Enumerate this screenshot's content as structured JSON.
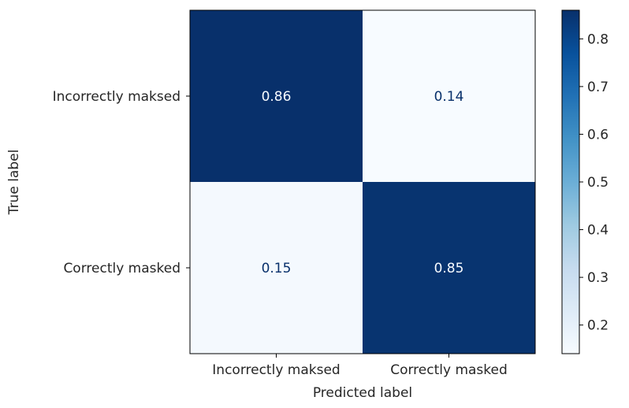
{
  "chart_data": {
    "type": "heatmap",
    "xlabel": "Predicted label",
    "ylabel": "True label",
    "x_categories": [
      "Incorrectly maksed",
      "Correctly masked"
    ],
    "y_categories": [
      "Incorrectly maksed",
      "Correctly masked"
    ],
    "values": [
      [
        0.86,
        0.14
      ],
      [
        0.15,
        0.85
      ]
    ],
    "value_labels": [
      [
        "0.86",
        "0.14"
      ],
      [
        "0.15",
        "0.85"
      ]
    ],
    "colormap": "Blues",
    "colorbar": {
      "min": 0.14,
      "max": 0.86,
      "ticks": [
        0.2,
        0.3,
        0.4,
        0.5,
        0.6,
        0.7,
        0.8
      ],
      "tick_labels": [
        "0.2",
        "0.3",
        "0.4",
        "0.5",
        "0.6",
        "0.7",
        "0.8"
      ]
    },
    "colors": {
      "low": "#f7fbff",
      "high": "#08306b",
      "text_on_dark": "#f7fbff",
      "text_on_light": "#08306b"
    }
  }
}
